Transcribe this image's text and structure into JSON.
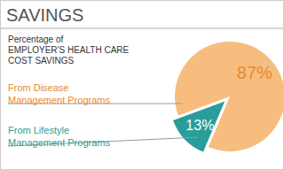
{
  "chart_data": {
    "type": "pie",
    "title": "SAVINGS",
    "subtitle": "Percentage of\nEMPLOYER'S HEALTH CARE\nCOST SAVINGS",
    "categories": [
      "From Disease Management Programs",
      "From Lifestyle Management Programs"
    ],
    "values": [
      87,
      13
    ],
    "value_labels": [
      "87%",
      "13%"
    ],
    "colors": [
      "#f7bd7f",
      "#2a9d9a"
    ],
    "data_labels": true
  }
}
